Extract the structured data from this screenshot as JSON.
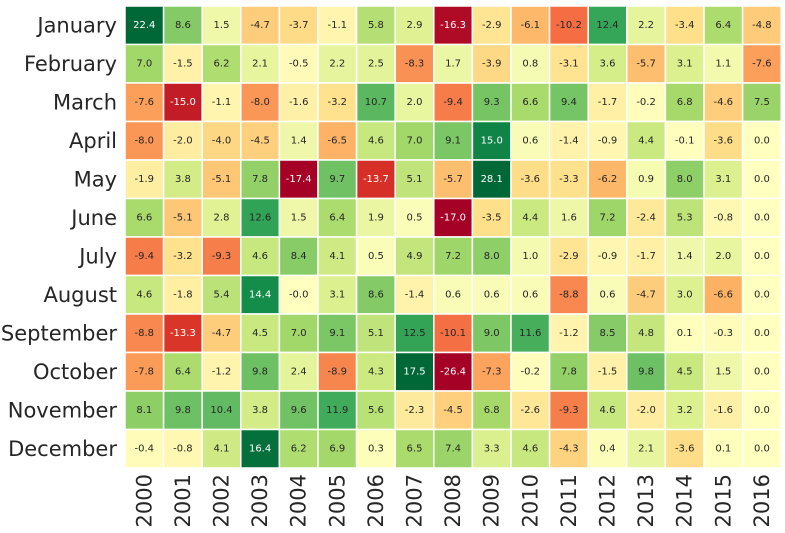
{
  "chart_data": {
    "type": "heatmap",
    "title": "",
    "xlabel": "",
    "ylabel": "",
    "colormap": "RdYlGn",
    "color_range": [
      -17.0,
      17.0
    ],
    "x_categories": [
      "2000",
      "2001",
      "2002",
      "2003",
      "2004",
      "2005",
      "2006",
      "2007",
      "2008",
      "2009",
      "2010",
      "2011",
      "2012",
      "2013",
      "2014",
      "2015",
      "2016"
    ],
    "y_categories": [
      "January",
      "February",
      "March",
      "April",
      "May",
      "June",
      "July",
      "August",
      "September",
      "October",
      "November",
      "December"
    ],
    "values": [
      [
        22.4,
        8.6,
        1.5,
        -4.7,
        -3.7,
        -1.1,
        5.8,
        2.9,
        -16.3,
        -2.9,
        -6.1,
        -10.2,
        12.4,
        2.2,
        -3.4,
        6.4,
        -4.8
      ],
      [
        7.0,
        -1.5,
        6.2,
        2.1,
        -0.5,
        2.2,
        2.5,
        -8.3,
        1.7,
        -3.9,
        0.8,
        -3.1,
        3.6,
        -5.7,
        3.1,
        1.1,
        -7.6
      ],
      [
        -7.6,
        -15.0,
        -1.1,
        -8.0,
        -1.6,
        -3.2,
        10.7,
        2.0,
        -9.4,
        9.3,
        6.6,
        9.4,
        -1.7,
        -0.2,
        6.8,
        -4.6,
        7.5
      ],
      [
        -8.0,
        -2.0,
        -4.0,
        -4.5,
        1.4,
        -6.5,
        4.6,
        7.0,
        9.1,
        15.0,
        0.6,
        -1.4,
        -0.9,
        4.4,
        -0.1,
        -3.6,
        0.0
      ],
      [
        -1.9,
        3.8,
        -5.1,
        7.8,
        -17.4,
        9.7,
        -13.7,
        5.1,
        -5.7,
        28.1,
        -3.6,
        -3.3,
        -6.2,
        0.9,
        8.0,
        3.1,
        0.0
      ],
      [
        6.6,
        -5.1,
        2.8,
        12.6,
        1.5,
        6.4,
        1.9,
        0.5,
        -17.0,
        -3.5,
        4.4,
        1.6,
        7.2,
        -2.4,
        5.3,
        -0.8,
        0.0
      ],
      [
        -9.4,
        -3.2,
        -9.3,
        4.6,
        8.4,
        4.1,
        0.5,
        4.9,
        7.2,
        8.0,
        1.0,
        -2.9,
        -0.9,
        -1.7,
        1.4,
        2.0,
        0.0
      ],
      [
        4.6,
        -1.8,
        5.4,
        14.4,
        -0.0,
        3.1,
        8.6,
        -1.4,
        0.6,
        0.6,
        0.6,
        -8.8,
        0.6,
        -4.7,
        3.0,
        -6.6,
        0.0
      ],
      [
        -8.8,
        -13.3,
        -4.7,
        4.5,
        7.0,
        9.1,
        5.1,
        12.5,
        -10.1,
        9.0,
        11.6,
        -1.2,
        8.5,
        4.8,
        0.1,
        -0.3,
        0.0
      ],
      [
        -7.8,
        6.4,
        -1.2,
        9.8,
        2.4,
        -8.9,
        4.3,
        17.5,
        -26.4,
        -7.3,
        -0.2,
        7.8,
        -1.5,
        9.8,
        4.5,
        1.5,
        0.0
      ],
      [
        8.1,
        9.8,
        10.4,
        3.8,
        9.6,
        11.9,
        5.6,
        -2.3,
        -4.5,
        6.8,
        -2.6,
        -9.3,
        4.6,
        -2.0,
        3.2,
        -1.6,
        0.0
      ],
      [
        -0.4,
        -0.8,
        4.1,
        16.4,
        6.2,
        6.9,
        0.3,
        6.5,
        7.4,
        3.3,
        4.6,
        -4.3,
        0.4,
        2.1,
        -3.6,
        0.1,
        0.0
      ]
    ],
    "labels": [
      [
        "22.4",
        "8.6",
        "1.5",
        "-4.7",
        "-3.7",
        "-1.1",
        "5.8",
        "2.9",
        "-16.3",
        "-2.9",
        "-6.1",
        "-10.2",
        "12.4",
        "2.2",
        "-3.4",
        "6.4",
        "-4.8"
      ],
      [
        "7.0",
        "-1.5",
        "6.2",
        "2.1",
        "-0.5",
        "2.2",
        "2.5",
        "-8.3",
        "1.7",
        "-3.9",
        "0.8",
        "-3.1",
        "3.6",
        "-5.7",
        "3.1",
        "1.1",
        "-7.6"
      ],
      [
        "-7.6",
        "-15.0",
        "-1.1",
        "-8.0",
        "-1.6",
        "-3.2",
        "10.7",
        "2.0",
        "-9.4",
        "9.3",
        "6.6",
        "9.4",
        "-1.7",
        "-0.2",
        "6.8",
        "-4.6",
        "7.5"
      ],
      [
        "-8.0",
        "-2.0",
        "-4.0",
        "-4.5",
        "1.4",
        "-6.5",
        "4.6",
        "7.0",
        "9.1",
        "15.0",
        "0.6",
        "-1.4",
        "-0.9",
        "4.4",
        "-0.1",
        "-3.6",
        "0.0"
      ],
      [
        "-1.9",
        "3.8",
        "-5.1",
        "7.8",
        "-17.4",
        "9.7",
        "-13.7",
        "5.1",
        "-5.7",
        "28.1",
        "-3.6",
        "-3.3",
        "-6.2",
        "0.9",
        "8.0",
        "3.1",
        "0.0"
      ],
      [
        "6.6",
        "-5.1",
        "2.8",
        "12.6",
        "1.5",
        "6.4",
        "1.9",
        "0.5",
        "-17.0",
        "-3.5",
        "4.4",
        "1.6",
        "7.2",
        "-2.4",
        "5.3",
        "-0.8",
        "0.0"
      ],
      [
        "-9.4",
        "-3.2",
        "-9.3",
        "4.6",
        "8.4",
        "4.1",
        "0.5",
        "4.9",
        "7.2",
        "8.0",
        "1.0",
        "-2.9",
        "-0.9",
        "-1.7",
        "1.4",
        "2.0",
        "0.0"
      ],
      [
        "4.6",
        "-1.8",
        "5.4",
        "14.4",
        "-0.0",
        "3.1",
        "8.6",
        "-1.4",
        "0.6",
        "0.6",
        "0.6",
        "-8.8",
        "0.6",
        "-4.7",
        "3.0",
        "-6.6",
        "0.0"
      ],
      [
        "-8.8",
        "-13.3",
        "-4.7",
        "4.5",
        "7.0",
        "9.1",
        "5.1",
        "12.5",
        "-10.1",
        "9.0",
        "11.6",
        "-1.2",
        "8.5",
        "4.8",
        "0.1",
        "-0.3",
        "0.0"
      ],
      [
        "-7.8",
        "6.4",
        "-1.2",
        "9.8",
        "2.4",
        "-8.9",
        "4.3",
        "17.5",
        "-26.4",
        "-7.3",
        "-0.2",
        "7.8",
        "-1.5",
        "9.8",
        "4.5",
        "1.5",
        "0.0"
      ],
      [
        "8.1",
        "9.8",
        "10.4",
        "3.8",
        "9.6",
        "11.9",
        "5.6",
        "-2.3",
        "-4.5",
        "6.8",
        "-2.6",
        "-9.3",
        "4.6",
        "-2.0",
        "3.2",
        "-1.6",
        "0.0"
      ],
      [
        "-0.4",
        "-0.8",
        "4.1",
        "16.4",
        "6.2",
        "6.9",
        "0.3",
        "6.5",
        "7.4",
        "3.3",
        "4.6",
        "-4.3",
        "0.4",
        "2.1",
        "-3.6",
        "0.1",
        "0.0"
      ]
    ],
    "colors": {
      "text_dark": "#262626",
      "text_light": "#ffffff",
      "grid_line": "#ffffff",
      "background": "#ffffff"
    }
  }
}
